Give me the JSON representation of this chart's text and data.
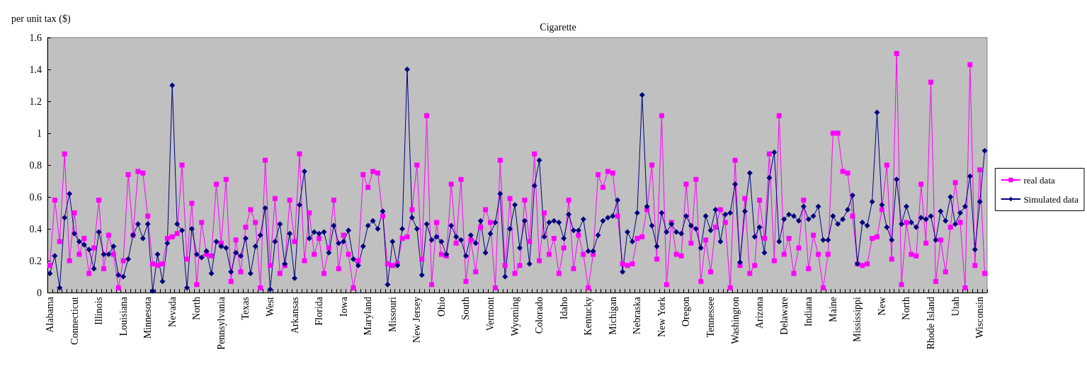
{
  "chart_data": {
    "type": "line",
    "title": "Cigarette",
    "ylabel": "per unit tax ($)",
    "categories": [
      "Alabama",
      null,
      null,
      null,
      null,
      "Connecticut",
      null,
      null,
      null,
      null,
      "Illinois",
      null,
      null,
      null,
      null,
      "Louisiana",
      null,
      null,
      null,
      null,
      "Minnesota",
      null,
      null,
      null,
      null,
      "Nevada",
      null,
      null,
      null,
      null,
      "North",
      null,
      null,
      null,
      null,
      "Pennsylvania",
      null,
      null,
      null,
      null,
      "Texas",
      null,
      null,
      null,
      null,
      "West",
      null,
      null,
      null,
      null,
      "Arkansas",
      null,
      null,
      null,
      null,
      "Florida",
      null,
      null,
      null,
      null,
      "Iowa",
      null,
      null,
      null,
      null,
      "Maryland",
      null,
      null,
      null,
      null,
      "Missouri",
      null,
      null,
      null,
      null,
      "New Jersey",
      null,
      null,
      null,
      null,
      "Ohio",
      null,
      null,
      null,
      null,
      "South",
      null,
      null,
      null,
      null,
      "Vermont",
      null,
      null,
      null,
      null,
      "Wyoming",
      null,
      null,
      null,
      null,
      "Colorado",
      null,
      null,
      null,
      null,
      "Idaho",
      null,
      null,
      null,
      null,
      "Kentucky",
      null,
      null,
      null,
      null,
      "Michigan",
      null,
      null,
      null,
      null,
      "Nebraska",
      null,
      null,
      null,
      null,
      "New York",
      null,
      null,
      null,
      null,
      "Oregon",
      null,
      null,
      null,
      null,
      "Tennessee",
      null,
      null,
      null,
      null,
      "Washington",
      null,
      null,
      null,
      null,
      "Arizona",
      null,
      null,
      null,
      null,
      "Delaware",
      null,
      null,
      null,
      null,
      "Indiana",
      null,
      null,
      null,
      null,
      "Maine",
      null,
      null,
      null,
      null,
      "Mississippi",
      null,
      null,
      null,
      null,
      "New",
      null,
      null,
      null,
      null,
      "North",
      null,
      null,
      null,
      null,
      "Rhode Island",
      null,
      null,
      null,
      null,
      "Utah",
      null,
      null,
      null,
      null,
      "Wisconsin",
      null
    ],
    "series": [
      {
        "name": "real data",
        "color": "#ff00ff",
        "marker": "square",
        "values": [
          0.17,
          0.58,
          0.32,
          0.87,
          0.2,
          0.5,
          0.24,
          0.34,
          0.12,
          0.28,
          0.58,
          0.15,
          0.36,
          0.24,
          0.03,
          0.2,
          0.74,
          0.36,
          0.76,
          0.75,
          0.48,
          0.18,
          0.17,
          0.18,
          0.34,
          0.35,
          0.37,
          0.8,
          0.21,
          0.56,
          0.05,
          0.44,
          0.24,
          0.23,
          0.68,
          0.31,
          0.71,
          0.07,
          0.33,
          0.13,
          0.41,
          0.52,
          0.44,
          0.03,
          0.83,
          0.17,
          0.59,
          0.12,
          0.17,
          0.58,
          0.32,
          0.87,
          0.2,
          0.5,
          0.24,
          0.34,
          0.12,
          0.28,
          0.58,
          0.15,
          0.36,
          0.24,
          0.03,
          0.2,
          0.74,
          0.66,
          0.76,
          0.75,
          0.48,
          0.18,
          0.17,
          0.18,
          0.34,
          0.35,
          0.52,
          0.8,
          0.21,
          1.11,
          0.05,
          0.44,
          0.24,
          0.23,
          0.68,
          0.31,
          0.71,
          0.07,
          0.33,
          0.13,
          0.41,
          0.52,
          0.44,
          0.03,
          0.83,
          0.17,
          0.59,
          0.12,
          0.17,
          0.58,
          0.32,
          0.87,
          0.2,
          0.5,
          0.24,
          0.34,
          0.12,
          0.28,
          0.58,
          0.15,
          0.36,
          0.24,
          0.03,
          0.24,
          0.74,
          0.66,
          0.76,
          0.75,
          0.48,
          0.18,
          0.17,
          0.18,
          0.34,
          0.35,
          0.52,
          0.8,
          0.21,
          1.11,
          0.05,
          0.44,
          0.24,
          0.23,
          0.68,
          0.31,
          0.71,
          0.07,
          0.33,
          0.13,
          0.41,
          0.52,
          0.44,
          0.03,
          0.83,
          0.17,
          0.59,
          0.12,
          0.17,
          0.58,
          0.34,
          0.87,
          0.2,
          1.11,
          0.24,
          0.34,
          0.12,
          0.28,
          0.58,
          0.15,
          0.36,
          0.24,
          0.03,
          0.24,
          1.0,
          1.0,
          0.76,
          0.75,
          0.48,
          0.18,
          0.17,
          0.18,
          0.34,
          0.35,
          0.52,
          0.8,
          0.21,
          1.5,
          0.05,
          0.44,
          0.24,
          0.23,
          0.68,
          0.31,
          1.32,
          0.07,
          0.33,
          0.13,
          0.41,
          0.69,
          0.44,
          0.03,
          1.43,
          0.17,
          0.77,
          0.12
        ]
      },
      {
        "name": "Simulated data",
        "color": "#000080",
        "marker": "diamond",
        "values": [
          0.12,
          0.23,
          0.03,
          0.47,
          0.62,
          0.37,
          0.32,
          0.3,
          0.27,
          0.15,
          0.38,
          0.24,
          0.24,
          0.29,
          0.11,
          0.1,
          0.21,
          0.36,
          0.43,
          0.34,
          0.43,
          0.01,
          0.24,
          0.07,
          0.31,
          1.3,
          0.43,
          0.39,
          0.03,
          0.4,
          0.24,
          0.22,
          0.26,
          0.12,
          0.32,
          0.29,
          0.28,
          0.13,
          0.25,
          0.23,
          0.34,
          0.12,
          0.29,
          0.36,
          0.53,
          0.02,
          0.32,
          0.43,
          0.18,
          0.37,
          0.09,
          0.55,
          0.76,
          0.34,
          0.38,
          0.37,
          0.38,
          0.25,
          0.42,
          0.31,
          0.32,
          0.39,
          0.21,
          0.17,
          0.29,
          0.42,
          0.45,
          0.4,
          0.51,
          0.05,
          0.32,
          0.17,
          0.4,
          1.4,
          0.47,
          0.4,
          0.11,
          0.43,
          0.33,
          0.35,
          0.32,
          0.24,
          0.42,
          0.35,
          0.33,
          0.23,
          0.36,
          0.31,
          0.45,
          0.25,
          0.37,
          0.44,
          0.62,
          0.1,
          0.4,
          0.55,
          0.28,
          0.45,
          0.18,
          0.67,
          0.83,
          0.35,
          0.44,
          0.45,
          0.44,
          0.34,
          0.49,
          0.39,
          0.39,
          0.46,
          0.26,
          0.26,
          0.36,
          0.45,
          0.47,
          0.48,
          0.58,
          0.13,
          0.38,
          0.32,
          0.5,
          1.24,
          0.54,
          0.42,
          0.29,
          0.5,
          0.38,
          0.43,
          0.38,
          0.37,
          0.48,
          0.42,
          0.4,
          0.28,
          0.48,
          0.39,
          0.52,
          0.32,
          0.49,
          0.5,
          0.68,
          0.19,
          0.51,
          0.75,
          0.35,
          0.41,
          0.25,
          0.72,
          0.88,
          0.32,
          0.46,
          0.49,
          0.48,
          0.45,
          0.54,
          0.46,
          0.48,
          0.54,
          0.33,
          0.33,
          0.48,
          0.43,
          0.46,
          0.52,
          0.61,
          0.18,
          0.44,
          0.42,
          0.57,
          1.13,
          0.55,
          0.41,
          0.33,
          0.71,
          0.43,
          0.54,
          0.44,
          0.41,
          0.47,
          0.46,
          0.48,
          0.33,
          0.51,
          0.45,
          0.6,
          0.43,
          0.5,
          0.54,
          0.73,
          0.27,
          0.57,
          0.89
        ]
      }
    ],
    "ylim": [
      0,
      1.6
    ],
    "yticks": [
      0,
      0.2,
      0.4,
      0.6,
      0.8,
      1,
      1.2,
      1.4,
      1.6
    ],
    "grid": false,
    "legend": "right"
  }
}
